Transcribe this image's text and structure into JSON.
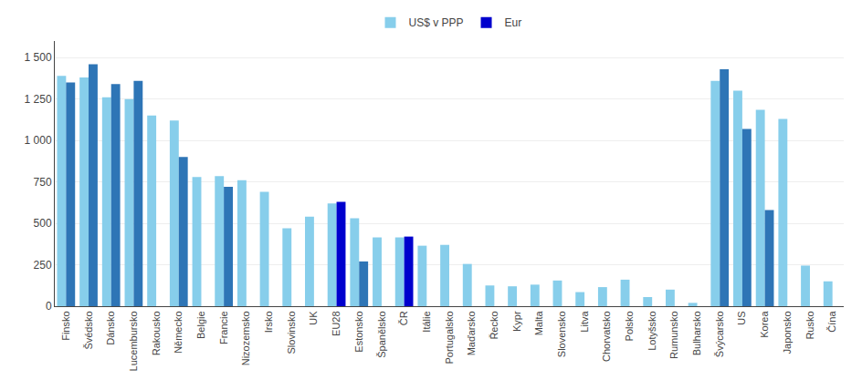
{
  "chart_data": {
    "type": "bar",
    "categories": [
      "Finsko",
      "Švédsko",
      "Dánsko",
      "Lucembursko",
      "Rakousko",
      "Německo",
      "Belgie",
      "Francie",
      "Nizozemsko",
      "Irsko",
      "Slovinsko",
      "UK",
      "EU28",
      "Estonsko",
      "Španělsko",
      "ČR",
      "Itálie",
      "Portugalsko",
      "Maďarsko",
      "Řecko",
      "Kypr",
      "Malta",
      "Slovensko",
      "Litva",
      "Chorvatsko",
      "Polsko",
      "Lotyšsko",
      "Rumunsko",
      "Bulharsko",
      "Švýcarsko",
      "US",
      "Korea",
      "Japonsko",
      "Rusko",
      "Čína"
    ],
    "series": [
      {
        "name": "US$ v PPP",
        "color": "#87CEEB",
        "values": [
          1390,
          1380,
          1260,
          1250,
          1150,
          1120,
          780,
          785,
          760,
          690,
          470,
          540,
          620,
          530,
          415,
          415,
          365,
          370,
          255,
          125,
          120,
          130,
          155,
          85,
          115,
          160,
          55,
          100,
          20,
          1360,
          1300,
          1185,
          1130,
          245,
          150
        ]
      },
      {
        "name": "Eur",
        "color": "#0000CD",
        "colors": [
          "#2E75B6",
          "#2E75B6",
          "#2E75B6",
          "#2E75B6",
          "#2E75B6",
          "#2E75B6",
          "#2E75B6",
          "#2E75B6",
          "#2E75B6",
          "#2E75B6",
          "#2E75B6",
          "#2E75B6",
          "#0000CD",
          "#2E75B6",
          "#2E75B6",
          "#0000CD",
          "#2E75B6",
          "#2E75B6",
          "#2E75B6",
          "#2E75B6",
          "#2E75B6",
          "#2E75B6",
          "#2E75B6",
          "#2E75B6",
          "#2E75B6",
          "#2E75B6",
          "#2E75B6",
          "#2E75B6",
          "#2E75B6",
          "#2E75B6",
          "#2E75B6",
          "#2E75B6",
          "#2E75B6",
          "#2E75B6",
          "#2E75B6"
        ],
        "values": [
          1350,
          1460,
          1340,
          1360,
          null,
          900,
          null,
          720,
          null,
          null,
          null,
          null,
          630,
          270,
          null,
          420,
          null,
          null,
          null,
          null,
          null,
          null,
          null,
          null,
          null,
          null,
          null,
          null,
          null,
          1430,
          1070,
          580,
          null,
          null,
          null
        ]
      }
    ],
    "ylim": [
      0,
      1600
    ],
    "yticks": [
      0,
      250,
      500,
      750,
      {
        "value": 1000,
        "label": "1 000"
      },
      {
        "value": 1250,
        "label": "1 250"
      },
      {
        "value": 1500,
        "label": "1 500"
      }
    ],
    "grid": true,
    "legend": "top"
  }
}
